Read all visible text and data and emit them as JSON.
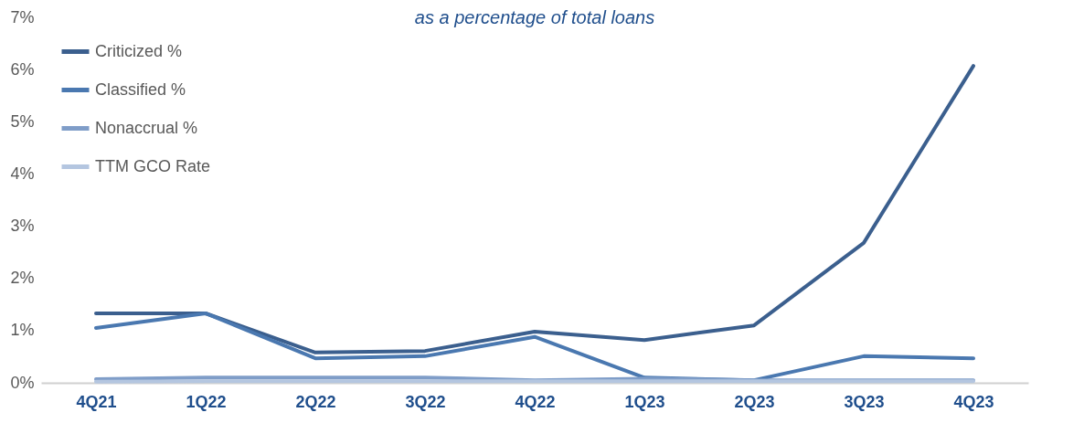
{
  "chart_data": {
    "type": "line",
    "title": "as a percentage of total loans",
    "categories": [
      "4Q21",
      "1Q22",
      "2Q22",
      "3Q22",
      "4Q22",
      "1Q23",
      "2Q23",
      "3Q23",
      "4Q23"
    ],
    "series": [
      {
        "name": "Criticized %",
        "color": "#3b5f8e",
        "values": [
          1.33,
          1.33,
          0.58,
          0.61,
          0.98,
          0.82,
          1.1,
          2.68,
          6.07
        ]
      },
      {
        "name": "Classified %",
        "color": "#4a78b0",
        "values": [
          1.05,
          1.33,
          0.47,
          0.51,
          0.88,
          0.1,
          0.05,
          0.51,
          0.47
        ]
      },
      {
        "name": "Nonaccrual %",
        "color": "#7f9dc8",
        "values": [
          0.07,
          0.1,
          0.1,
          0.1,
          0.05,
          0.08,
          0.05,
          0.05,
          0.05
        ]
      },
      {
        "name": "TTM GCO Rate",
        "color": "#b4c6e0",
        "values": [
          0.02,
          0.03,
          0.03,
          0.03,
          0.03,
          0.03,
          0.03,
          0.03,
          0.03
        ]
      }
    ],
    "ylim": [
      0,
      7
    ],
    "yticks": [
      {
        "value": 0,
        "label": "0%"
      },
      {
        "value": 1,
        "label": "1%"
      },
      {
        "value": 2,
        "label": "2%"
      },
      {
        "value": 3,
        "label": "3%"
      },
      {
        "value": 4,
        "label": "4%"
      },
      {
        "value": 5,
        "label": "5%"
      },
      {
        "value": 6,
        "label": "6%"
      },
      {
        "value": 7,
        "label": "7%"
      }
    ],
    "grid": false,
    "legend": "top left",
    "marker": "none",
    "line_style": "solid"
  }
}
